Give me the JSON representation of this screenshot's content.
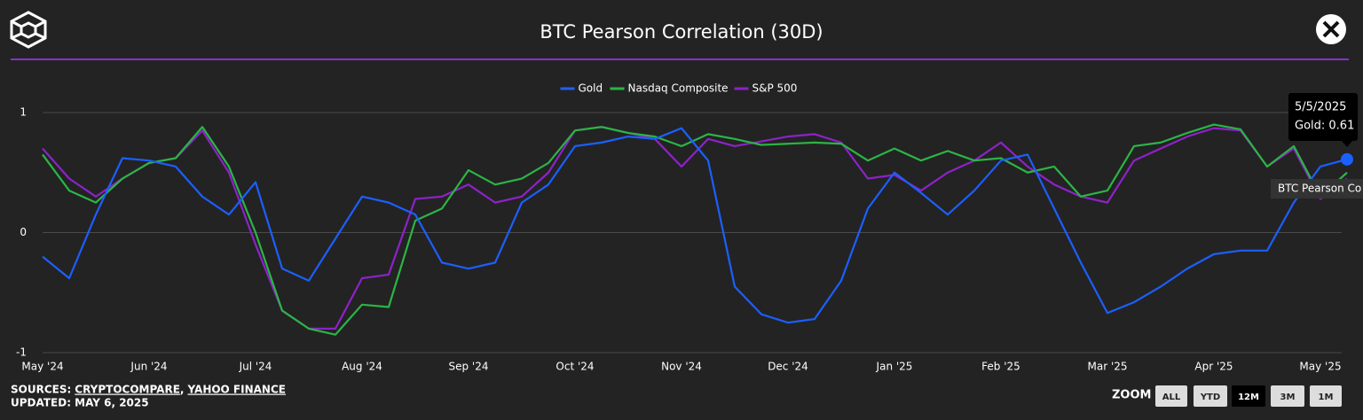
{
  "header": {
    "title": "BTC Pearson Correlation (30D)"
  },
  "chart_data": {
    "type": "line",
    "categories": [
      "May '24",
      null,
      null,
      null,
      "Jun '24",
      null,
      null,
      null,
      "Jul '24",
      null,
      null,
      null,
      "Aug '24",
      null,
      null,
      null,
      "Sep '24",
      null,
      null,
      null,
      "Oct '24",
      null,
      null,
      null,
      "Nov '24",
      null,
      null,
      null,
      "Dec '24",
      null,
      null,
      null,
      "Jan '25",
      null,
      null,
      null,
      "Feb '25",
      null,
      null,
      null,
      "Mar '25",
      null,
      null,
      null,
      "Apr '25",
      null,
      null,
      null,
      "May '25",
      null
    ],
    "series": [
      {
        "name": "Gold",
        "color": "#1c5fff",
        "values": [
          -0.2,
          -0.38,
          0.15,
          0.62,
          0.6,
          0.55,
          0.3,
          0.15,
          0.42,
          -0.3,
          -0.4,
          -0.05,
          0.3,
          0.25,
          0.15,
          -0.25,
          -0.3,
          -0.25,
          0.25,
          0.4,
          0.72,
          0.75,
          0.8,
          0.78,
          0.87,
          0.6,
          -0.45,
          -0.68,
          -0.75,
          -0.72,
          -0.4,
          0.2,
          0.5,
          0.33,
          0.15,
          0.35,
          0.6,
          0.65,
          0.2,
          -0.25,
          -0.67,
          -0.58,
          -0.45,
          -0.3,
          -0.18,
          -0.15,
          -0.15,
          0.25,
          0.55,
          0.61
        ]
      },
      {
        "name": "Nasdaq Composite",
        "color": "#2bb545",
        "values": [
          0.65,
          0.35,
          0.25,
          0.45,
          0.58,
          0.62,
          0.88,
          0.55,
          0.0,
          -0.65,
          -0.8,
          -0.85,
          -0.6,
          -0.62,
          0.1,
          0.2,
          0.52,
          0.4,
          0.45,
          0.58,
          0.85,
          0.88,
          0.83,
          0.8,
          0.72,
          0.82,
          0.78,
          0.73,
          0.74,
          0.75,
          0.74,
          0.6,
          0.7,
          0.6,
          0.68,
          0.6,
          0.62,
          0.5,
          0.55,
          0.3,
          0.35,
          0.72,
          0.75,
          0.83,
          0.9,
          0.86,
          0.55,
          0.72,
          0.3,
          0.5
        ]
      },
      {
        "name": "S&P 500",
        "color": "#8d22c9",
        "values": [
          0.7,
          0.45,
          0.3,
          0.45,
          0.58,
          0.62,
          0.85,
          0.5,
          -0.1,
          -0.65,
          -0.8,
          -0.8,
          -0.38,
          -0.35,
          0.28,
          0.3,
          0.4,
          0.25,
          0.3,
          0.5,
          0.85,
          0.88,
          0.83,
          0.78,
          0.55,
          0.78,
          0.72,
          0.76,
          0.8,
          0.82,
          0.75,
          0.45,
          0.48,
          0.35,
          0.5,
          0.6,
          0.75,
          0.55,
          0.4,
          0.3,
          0.25,
          0.6,
          0.7,
          0.8,
          0.87,
          0.85,
          0.55,
          0.7,
          0.28,
          0.45
        ]
      }
    ],
    "ylim": [
      -1,
      1
    ],
    "yticks": [
      -1,
      0,
      1
    ],
    "grid": true,
    "legend": "top",
    "tooltip": {
      "date": "5/5/2025",
      "label": "Gold: 0.61"
    },
    "hover_label": "BTC Pearson Co"
  },
  "footer": {
    "sources_label": "SOURCES:",
    "sources": [
      "CRYPTOCOMPARE",
      "YAHOO FINANCE"
    ],
    "separator": ",",
    "updated": "UPDATED: MAY 6, 2025",
    "zoom_label": "ZOOM",
    "zoom_buttons": [
      "ALL",
      "YTD",
      "12M",
      "3M",
      "1M"
    ]
  }
}
